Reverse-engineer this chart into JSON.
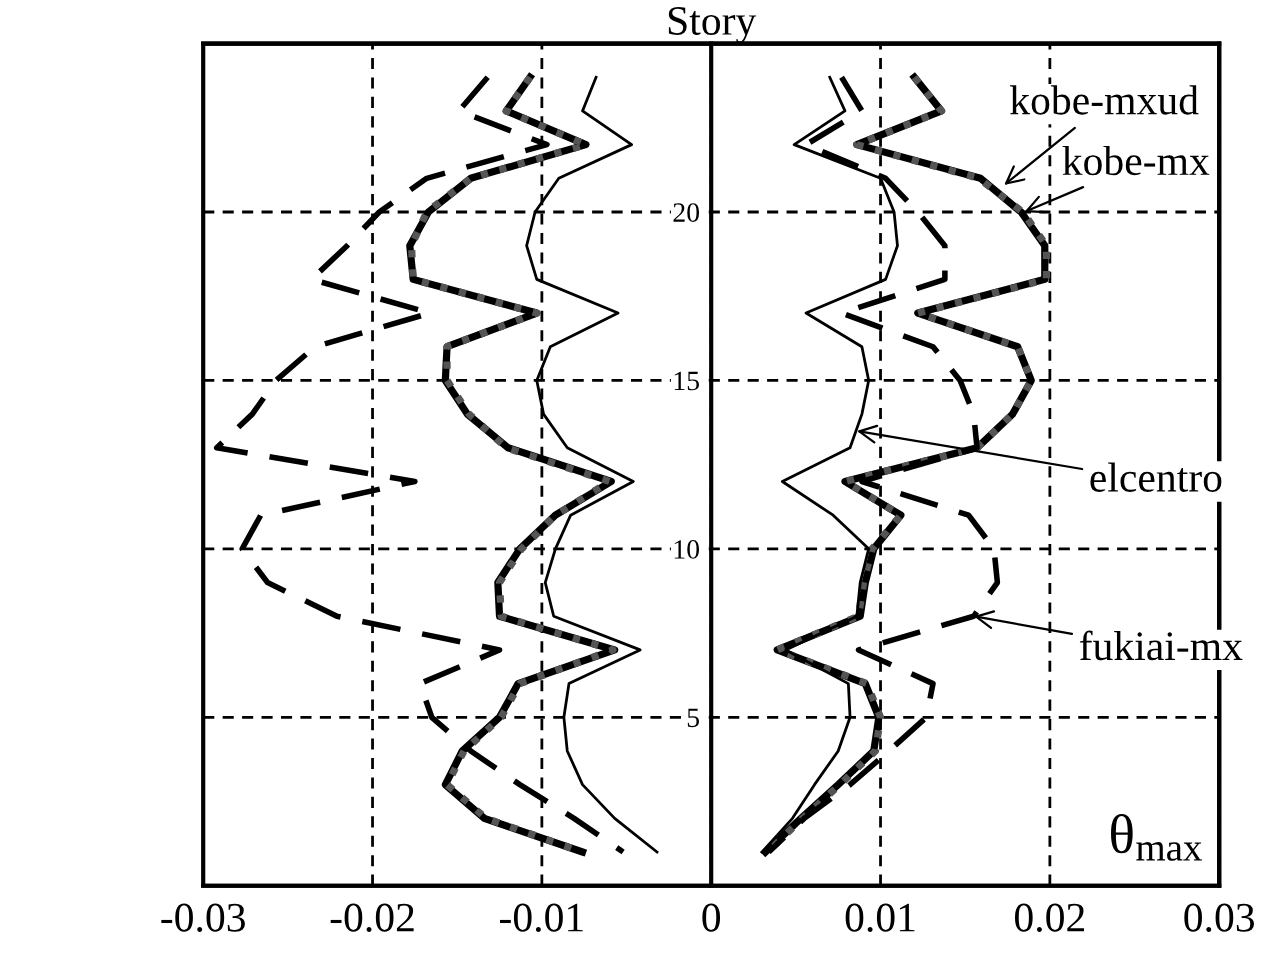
{
  "chart_data": {
    "type": "line",
    "ylabel": "Story",
    "xlabel": "θ$_{max}$",
    "xlim": [
      -0.03,
      0.03
    ],
    "xticks": [
      -0.03,
      -0.02,
      -0.01,
      0,
      0.01,
      0.02,
      0.03
    ],
    "ylim": [
      0,
      25
    ],
    "yticks": [
      {
        "value": 0,
        "label": null
      },
      5,
      10,
      15,
      20
    ],
    "grid": true,
    "series": [
      {
        "color": "#000000",
        "line_style": "solid",
        "x": [
          -0.0107,
          -0.0121,
          -0.0074,
          -0.0142,
          -0.0167,
          -0.0178,
          -0.0176,
          -0.0103,
          -0.0156,
          -0.0157,
          -0.0144,
          -0.012,
          -0.0059,
          -0.0092,
          -0.0113,
          -0.0126,
          -0.0125,
          -0.0057,
          -0.0114,
          -0.0125,
          -0.0147,
          -0.0157,
          -0.0134,
          -0.0076,
          null,
          0.012,
          0.0136,
          0.0086,
          0.0159,
          0.0183,
          0.0197,
          0.0197,
          0.0122,
          0.0181,
          0.0189,
          0.0178,
          0.0157,
          0.0079,
          0.0112,
          0.0096,
          0.0091,
          0.0088,
          0.0039,
          0.0091,
          0.0099,
          0.0096,
          0.0075,
          0.0053,
          0.0032
        ],
        "values": [
          24,
          23,
          22,
          21,
          20,
          19,
          18,
          17,
          16,
          15,
          14,
          13,
          12,
          11,
          10,
          9,
          8,
          7,
          6,
          5,
          4,
          3,
          2,
          1,
          null,
          24,
          23,
          22,
          21,
          20,
          19,
          18,
          17,
          16,
          15,
          14,
          13,
          12,
          11,
          10,
          9,
          8,
          7,
          6,
          5,
          4,
          3,
          2,
          1
        ]
      },
      {
        "color": "#555555",
        "line_style": "dotted",
        "x": [
          -0.0107,
          -0.0121,
          -0.0074,
          -0.0142,
          -0.0168,
          -0.0177,
          -0.0176,
          -0.0103,
          -0.0156,
          -0.0156,
          -0.0143,
          -0.0121,
          -0.006,
          -0.0092,
          -0.0112,
          -0.0125,
          -0.0124,
          -0.0058,
          -0.0113,
          -0.0124,
          -0.0146,
          -0.0156,
          -0.0133,
          -0.0076,
          null,
          0.012,
          0.0136,
          0.0086,
          0.0158,
          0.0184,
          0.0198,
          0.0198,
          0.0122,
          0.0181,
          0.0189,
          0.0178,
          0.0157,
          0.0079,
          0.0112,
          0.0095,
          0.009,
          0.0087,
          0.0039,
          0.0092,
          0.01,
          0.0097,
          0.0076,
          0.0054,
          0.0033
        ],
        "values": [
          24,
          23,
          22,
          21,
          20,
          19,
          18,
          17,
          16,
          15,
          14,
          13,
          12,
          11,
          10,
          9,
          8,
          7,
          6,
          5,
          4,
          3,
          2,
          1,
          null,
          24,
          23,
          22,
          21,
          20,
          19,
          18,
          17,
          16,
          15,
          14,
          13,
          12,
          11,
          10,
          9,
          8,
          7,
          6,
          5,
          4,
          3,
          2,
          1
        ]
      },
      {
        "color": "#000000",
        "line_style": "solid",
        "x": [
          -0.0068,
          -0.0076,
          -0.0047,
          -0.009,
          -0.0104,
          -0.0109,
          -0.0103,
          -0.0055,
          -0.0095,
          -0.0103,
          -0.0099,
          -0.0085,
          -0.0046,
          -0.0083,
          -0.0092,
          -0.0098,
          -0.0093,
          -0.0042,
          -0.0084,
          -0.0087,
          -0.0085,
          -0.0076,
          -0.0057,
          -0.0032,
          null,
          0.007,
          0.0079,
          0.0049,
          0.01,
          0.0108,
          0.011,
          0.0103,
          0.0056,
          0.0089,
          0.0093,
          0.0089,
          0.0082,
          0.0042,
          0.0072,
          0.0093,
          0.0088,
          0.0086,
          0.0044,
          0.0081,
          0.0082,
          0.0075,
          0.0061,
          0.0048,
          0.003
        ],
        "values": [
          24,
          23,
          22,
          21,
          20,
          19,
          18,
          17,
          16,
          15,
          14,
          13,
          12,
          11,
          10,
          9,
          8,
          7,
          6,
          5,
          4,
          3,
          2,
          1,
          null,
          24,
          23,
          22,
          21,
          20,
          19,
          18,
          17,
          16,
          15,
          14,
          13,
          12,
          11,
          10,
          9,
          8,
          7,
          6,
          5,
          4,
          3,
          2,
          1
        ]
      },
      {
        "color": "#000000",
        "line_style": "dashed",
        "x": [
          -0.0132,
          -0.0149,
          -0.0097,
          -0.0168,
          -0.0196,
          -0.0215,
          -0.0236,
          -0.0166,
          -0.0234,
          -0.0257,
          -0.0271,
          -0.0292,
          -0.0175,
          -0.0266,
          -0.0277,
          -0.0262,
          -0.0221,
          -0.0125,
          -0.0172,
          -0.0165,
          -0.0142,
          -0.0113,
          -0.0081,
          -0.0052,
          null,
          0.0077,
          0.0089,
          0.0056,
          0.0103,
          0.0122,
          0.0138,
          0.0138,
          0.0077,
          0.0131,
          0.0147,
          0.0155,
          0.0157,
          0.0089,
          0.0152,
          0.0167,
          0.0169,
          0.0155,
          0.0087,
          0.0131,
          0.0127,
          0.0105,
          0.0082,
          0.0055,
          0.0034
        ],
        "values": [
          24,
          23,
          22,
          21,
          20,
          19,
          18,
          17,
          16,
          15,
          14,
          13,
          12,
          11,
          10,
          9,
          8,
          7,
          6,
          5,
          4,
          3,
          2,
          1,
          null,
          24,
          23,
          22,
          21,
          20,
          19,
          18,
          17,
          16,
          15,
          14,
          13,
          12,
          11,
          10,
          9,
          8,
          7,
          6,
          5,
          4,
          3,
          2,
          1
        ]
      }
    ],
    "annotations": [
      {
        "text": "kobe-mxud",
        "x": 0.0173,
        "y": 20.8
      },
      {
        "text": "kobe-mx",
        "x": 0.0185,
        "y": 20
      },
      {
        "text": "elcentro",
        "x": 0.0086,
        "y": 13.5
      },
      {
        "text": "fukiai-mx",
        "x": 0.0155,
        "y": 8
      }
    ]
  }
}
